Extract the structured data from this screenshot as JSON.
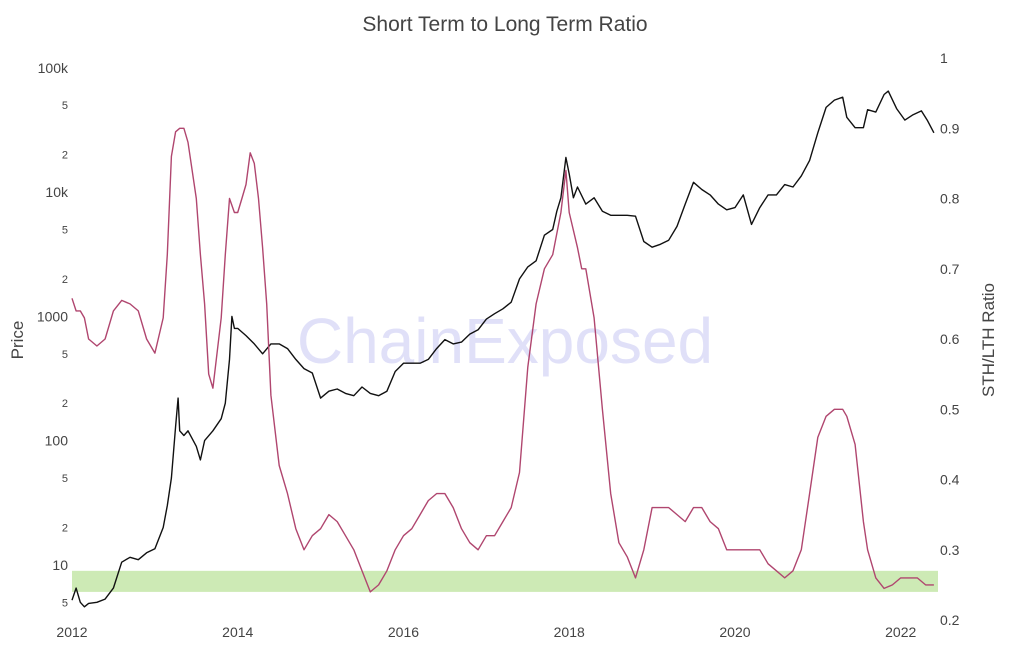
{
  "chart_data": {
    "type": "line",
    "title": "Short Term to Long Term Ratio",
    "watermark": "ChainExposed",
    "x_axis": {
      "type": "date",
      "range": [
        2012.0,
        2022.45
      ],
      "ticks": [
        {
          "value": 2012,
          "label": "2012"
        },
        {
          "value": 2014,
          "label": "2014"
        },
        {
          "value": 2016,
          "label": "2016"
        },
        {
          "value": 2018,
          "label": "2018"
        },
        {
          "value": 2020,
          "label": "2020"
        },
        {
          "value": 2022,
          "label": "2022"
        }
      ]
    },
    "y_left": {
      "title": "Price",
      "scale": "log",
      "range": [
        3.6,
        120000
      ],
      "major_ticks": [
        {
          "value": 10,
          "label": "10"
        },
        {
          "value": 100,
          "label": "100"
        },
        {
          "value": 1000,
          "label": "1000"
        },
        {
          "value": 10000,
          "label": "10k"
        },
        {
          "value": 100000,
          "label": "100k"
        }
      ],
      "minor_ticks": [
        {
          "value": 5,
          "label": "5"
        },
        {
          "value": 20,
          "label": "2"
        },
        {
          "value": 50,
          "label": "5"
        },
        {
          "value": 200,
          "label": "2"
        },
        {
          "value": 500,
          "label": "5"
        },
        {
          "value": 2000,
          "label": "2"
        },
        {
          "value": 5000,
          "label": "5"
        },
        {
          "value": 20000,
          "label": "2"
        },
        {
          "value": 50000,
          "label": "5"
        }
      ]
    },
    "y_right": {
      "title": "STH/LTH Ratio",
      "scale": "linear",
      "range": [
        0.2,
        1.0
      ],
      "ticks": [
        {
          "value": 0.2,
          "label": "0.2"
        },
        {
          "value": 0.3,
          "label": "0.3"
        },
        {
          "value": 0.4,
          "label": "0.4"
        },
        {
          "value": 0.5,
          "label": "0.5"
        },
        {
          "value": 0.6,
          "label": "0.6"
        },
        {
          "value": 0.7,
          "label": "0.7"
        },
        {
          "value": 0.8,
          "label": "0.8"
        },
        {
          "value": 0.9,
          "label": "0.9"
        },
        {
          "value": 1.0,
          "label": "1"
        }
      ]
    },
    "band": {
      "axis": "right",
      "from": 0.24,
      "to": 0.27,
      "color": "#cdeab5"
    },
    "series": [
      {
        "name": "Price",
        "axis": "left",
        "color": "#111111",
        "points": [
          [
            2012.0,
            5.2
          ],
          [
            2012.05,
            6.5
          ],
          [
            2012.1,
            5.0
          ],
          [
            2012.15,
            4.6
          ],
          [
            2012.2,
            4.9
          ],
          [
            2012.3,
            5.0
          ],
          [
            2012.4,
            5.3
          ],
          [
            2012.5,
            6.5
          ],
          [
            2012.6,
            10.5
          ],
          [
            2012.7,
            11.5
          ],
          [
            2012.8,
            11.0
          ],
          [
            2012.9,
            12.5
          ],
          [
            2013.0,
            13.5
          ],
          [
            2013.1,
            20
          ],
          [
            2013.15,
            30
          ],
          [
            2013.2,
            50
          ],
          [
            2013.25,
            130
          ],
          [
            2013.28,
            220
          ],
          [
            2013.3,
            120
          ],
          [
            2013.35,
            110
          ],
          [
            2013.4,
            120
          ],
          [
            2013.5,
            90
          ],
          [
            2013.55,
            70
          ],
          [
            2013.6,
            100
          ],
          [
            2013.7,
            120
          ],
          [
            2013.8,
            150
          ],
          [
            2013.85,
            200
          ],
          [
            2013.9,
            450
          ],
          [
            2013.93,
            1000
          ],
          [
            2013.96,
            800
          ],
          [
            2014.0,
            800
          ],
          [
            2014.1,
            700
          ],
          [
            2014.2,
            600
          ],
          [
            2014.3,
            500
          ],
          [
            2014.4,
            600
          ],
          [
            2014.5,
            600
          ],
          [
            2014.6,
            550
          ],
          [
            2014.7,
            450
          ],
          [
            2014.8,
            380
          ],
          [
            2014.9,
            350
          ],
          [
            2015.0,
            220
          ],
          [
            2015.1,
            250
          ],
          [
            2015.2,
            260
          ],
          [
            2015.3,
            240
          ],
          [
            2015.4,
            230
          ],
          [
            2015.5,
            270
          ],
          [
            2015.6,
            240
          ],
          [
            2015.7,
            230
          ],
          [
            2015.8,
            250
          ],
          [
            2015.9,
            360
          ],
          [
            2016.0,
            420
          ],
          [
            2016.1,
            420
          ],
          [
            2016.2,
            420
          ],
          [
            2016.3,
            450
          ],
          [
            2016.4,
            550
          ],
          [
            2016.5,
            650
          ],
          [
            2016.6,
            600
          ],
          [
            2016.7,
            620
          ],
          [
            2016.8,
            720
          ],
          [
            2016.9,
            780
          ],
          [
            2017.0,
            950
          ],
          [
            2017.1,
            1050
          ],
          [
            2017.2,
            1150
          ],
          [
            2017.3,
            1300
          ],
          [
            2017.4,
            2000
          ],
          [
            2017.5,
            2500
          ],
          [
            2017.6,
            2800
          ],
          [
            2017.7,
            4500
          ],
          [
            2017.8,
            5000
          ],
          [
            2017.85,
            7000
          ],
          [
            2017.9,
            9000
          ],
          [
            2017.96,
            19000
          ],
          [
            2018.0,
            14000
          ],
          [
            2018.05,
            9000
          ],
          [
            2018.1,
            11000
          ],
          [
            2018.2,
            8000
          ],
          [
            2018.3,
            9000
          ],
          [
            2018.4,
            7000
          ],
          [
            2018.5,
            6500
          ],
          [
            2018.6,
            6500
          ],
          [
            2018.7,
            6500
          ],
          [
            2018.8,
            6400
          ],
          [
            2018.9,
            4000
          ],
          [
            2019.0,
            3600
          ],
          [
            2019.1,
            3800
          ],
          [
            2019.2,
            4100
          ],
          [
            2019.3,
            5300
          ],
          [
            2019.4,
            8000
          ],
          [
            2019.5,
            12000
          ],
          [
            2019.6,
            10500
          ],
          [
            2019.7,
            9500
          ],
          [
            2019.8,
            8000
          ],
          [
            2019.9,
            7200
          ],
          [
            2020.0,
            7500
          ],
          [
            2020.1,
            9500
          ],
          [
            2020.2,
            5500
          ],
          [
            2020.3,
            7500
          ],
          [
            2020.4,
            9500
          ],
          [
            2020.5,
            9500
          ],
          [
            2020.6,
            11500
          ],
          [
            2020.7,
            11000
          ],
          [
            2020.8,
            13500
          ],
          [
            2020.9,
            18000
          ],
          [
            2021.0,
            30000
          ],
          [
            2021.1,
            48000
          ],
          [
            2021.2,
            55000
          ],
          [
            2021.3,
            58000
          ],
          [
            2021.35,
            40000
          ],
          [
            2021.45,
            33000
          ],
          [
            2021.55,
            33000
          ],
          [
            2021.6,
            46000
          ],
          [
            2021.7,
            44000
          ],
          [
            2021.8,
            61000
          ],
          [
            2021.85,
            65000
          ],
          [
            2021.95,
            47000
          ],
          [
            2022.05,
            38000
          ],
          [
            2022.15,
            42000
          ],
          [
            2022.25,
            45000
          ],
          [
            2022.32,
            38000
          ],
          [
            2022.4,
            30000
          ]
        ]
      },
      {
        "name": "STH/LTH Ratio",
        "axis": "right",
        "color": "#b0466f",
        "points": [
          [
            2012.0,
            0.658
          ],
          [
            2012.05,
            0.64
          ],
          [
            2012.1,
            0.64
          ],
          [
            2012.15,
            0.63
          ],
          [
            2012.2,
            0.6
          ],
          [
            2012.3,
            0.59
          ],
          [
            2012.4,
            0.6
          ],
          [
            2012.5,
            0.64
          ],
          [
            2012.6,
            0.655
          ],
          [
            2012.7,
            0.65
          ],
          [
            2012.8,
            0.64
          ],
          [
            2012.9,
            0.6
          ],
          [
            2013.0,
            0.58
          ],
          [
            2013.1,
            0.63
          ],
          [
            2013.15,
            0.72
          ],
          [
            2013.2,
            0.86
          ],
          [
            2013.25,
            0.895
          ],
          [
            2013.3,
            0.9
          ],
          [
            2013.35,
            0.9
          ],
          [
            2013.4,
            0.88
          ],
          [
            2013.5,
            0.8
          ],
          [
            2013.55,
            0.72
          ],
          [
            2013.6,
            0.65
          ],
          [
            2013.65,
            0.55
          ],
          [
            2013.7,
            0.53
          ],
          [
            2013.8,
            0.63
          ],
          [
            2013.85,
            0.72
          ],
          [
            2013.9,
            0.8
          ],
          [
            2013.96,
            0.78
          ],
          [
            2014.0,
            0.78
          ],
          [
            2014.05,
            0.8
          ],
          [
            2014.1,
            0.82
          ],
          [
            2014.15,
            0.865
          ],
          [
            2014.2,
            0.85
          ],
          [
            2014.25,
            0.8
          ],
          [
            2014.3,
            0.73
          ],
          [
            2014.35,
            0.65
          ],
          [
            2014.4,
            0.52
          ],
          [
            2014.5,
            0.42
          ],
          [
            2014.6,
            0.38
          ],
          [
            2014.7,
            0.33
          ],
          [
            2014.8,
            0.3
          ],
          [
            2014.9,
            0.32
          ],
          [
            2015.0,
            0.33
          ],
          [
            2015.1,
            0.35
          ],
          [
            2015.2,
            0.34
          ],
          [
            2015.3,
            0.32
          ],
          [
            2015.4,
            0.3
          ],
          [
            2015.5,
            0.27
          ],
          [
            2015.6,
            0.24
          ],
          [
            2015.7,
            0.25
          ],
          [
            2015.8,
            0.27
          ],
          [
            2015.9,
            0.3
          ],
          [
            2016.0,
            0.32
          ],
          [
            2016.1,
            0.33
          ],
          [
            2016.2,
            0.35
          ],
          [
            2016.3,
            0.37
          ],
          [
            2016.4,
            0.38
          ],
          [
            2016.5,
            0.38
          ],
          [
            2016.6,
            0.36
          ],
          [
            2016.7,
            0.33
          ],
          [
            2016.8,
            0.31
          ],
          [
            2016.9,
            0.3
          ],
          [
            2017.0,
            0.32
          ],
          [
            2017.1,
            0.32
          ],
          [
            2017.2,
            0.34
          ],
          [
            2017.3,
            0.36
          ],
          [
            2017.4,
            0.41
          ],
          [
            2017.5,
            0.56
          ],
          [
            2017.6,
            0.65
          ],
          [
            2017.7,
            0.7
          ],
          [
            2017.8,
            0.72
          ],
          [
            2017.9,
            0.78
          ],
          [
            2017.96,
            0.84
          ],
          [
            2018.0,
            0.78
          ],
          [
            2018.1,
            0.73
          ],
          [
            2018.15,
            0.7
          ],
          [
            2018.2,
            0.7
          ],
          [
            2018.3,
            0.63
          ],
          [
            2018.4,
            0.5
          ],
          [
            2018.5,
            0.38
          ],
          [
            2018.6,
            0.31
          ],
          [
            2018.7,
            0.29
          ],
          [
            2018.8,
            0.26
          ],
          [
            2018.9,
            0.3
          ],
          [
            2019.0,
            0.36
          ],
          [
            2019.1,
            0.36
          ],
          [
            2019.2,
            0.36
          ],
          [
            2019.3,
            0.35
          ],
          [
            2019.4,
            0.34
          ],
          [
            2019.5,
            0.36
          ],
          [
            2019.6,
            0.36
          ],
          [
            2019.7,
            0.34
          ],
          [
            2019.8,
            0.33
          ],
          [
            2019.9,
            0.3
          ],
          [
            2020.0,
            0.3
          ],
          [
            2020.1,
            0.3
          ],
          [
            2020.2,
            0.3
          ],
          [
            2020.3,
            0.3
          ],
          [
            2020.4,
            0.28
          ],
          [
            2020.5,
            0.27
          ],
          [
            2020.6,
            0.26
          ],
          [
            2020.7,
            0.27
          ],
          [
            2020.8,
            0.3
          ],
          [
            2020.9,
            0.38
          ],
          [
            2021.0,
            0.46
          ],
          [
            2021.1,
            0.49
          ],
          [
            2021.2,
            0.5
          ],
          [
            2021.3,
            0.5
          ],
          [
            2021.35,
            0.49
          ],
          [
            2021.45,
            0.45
          ],
          [
            2021.55,
            0.34
          ],
          [
            2021.6,
            0.3
          ],
          [
            2021.7,
            0.26
          ],
          [
            2021.8,
            0.245
          ],
          [
            2021.9,
            0.25
          ],
          [
            2022.0,
            0.26
          ],
          [
            2022.1,
            0.26
          ],
          [
            2022.2,
            0.26
          ],
          [
            2022.3,
            0.25
          ],
          [
            2022.4,
            0.25
          ]
        ]
      }
    ]
  }
}
